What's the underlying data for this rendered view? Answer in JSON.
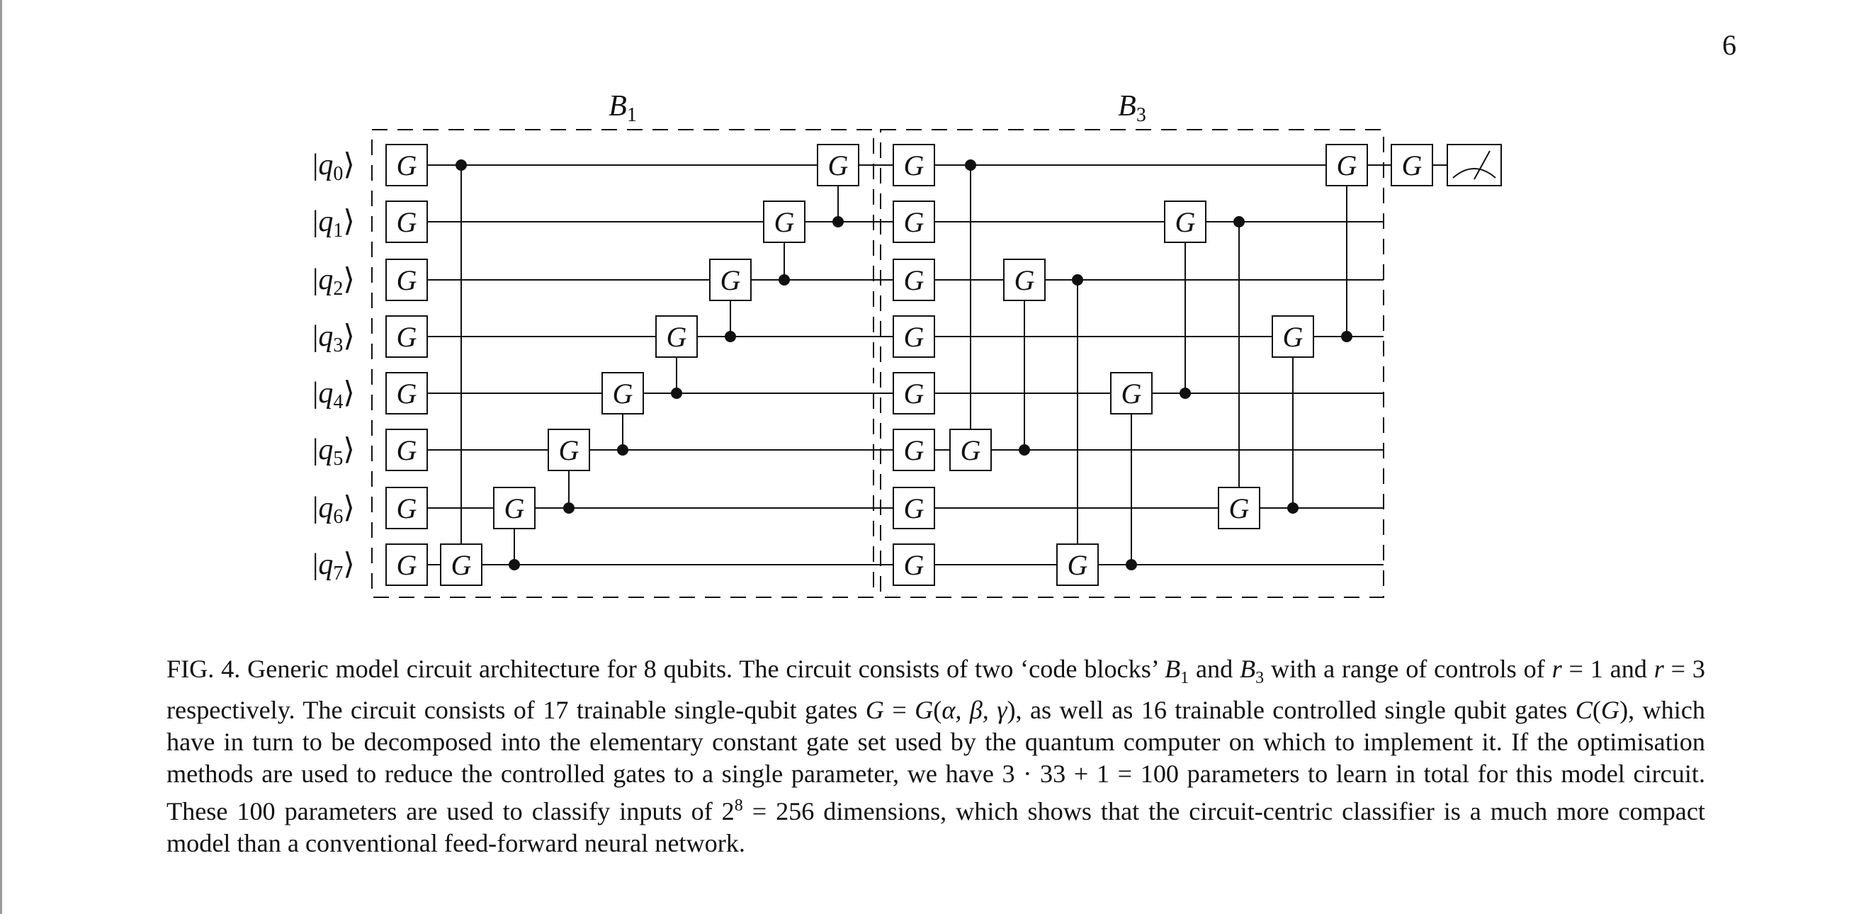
{
  "page_number": "6",
  "figure": {
    "blocks": [
      {
        "label_base": "B",
        "label_sub": "1"
      },
      {
        "label_base": "B",
        "label_sub": "3"
      }
    ],
    "qubits": [
      {
        "base": "q",
        "sub": "0"
      },
      {
        "base": "q",
        "sub": "1"
      },
      {
        "base": "q",
        "sub": "2"
      },
      {
        "base": "q",
        "sub": "3"
      },
      {
        "base": "q",
        "sub": "4"
      },
      {
        "base": "q",
        "sub": "5"
      },
      {
        "base": "q",
        "sub": "6"
      },
      {
        "base": "q",
        "sub": "7"
      }
    ],
    "gate_label": "G",
    "block_B1": {
      "controlled_gates": [
        {
          "control": 0,
          "target": 7
        },
        {
          "control": 7,
          "target": 6
        },
        {
          "control": 6,
          "target": 5
        },
        {
          "control": 5,
          "target": 4
        },
        {
          "control": 4,
          "target": 3
        },
        {
          "control": 3,
          "target": 2
        },
        {
          "control": 2,
          "target": 1
        },
        {
          "control": 1,
          "target": 0
        }
      ]
    },
    "block_B3": {
      "controlled_gates": [
        {
          "control": 0,
          "target": 5
        },
        {
          "control": 5,
          "target": 2
        },
        {
          "control": 2,
          "target": 7
        },
        {
          "control": 7,
          "target": 4
        },
        {
          "control": 4,
          "target": 1
        },
        {
          "control": 1,
          "target": 6
        },
        {
          "control": 6,
          "target": 3
        },
        {
          "control": 3,
          "target": 0
        }
      ]
    },
    "final": {
      "gate_qubit": 0,
      "measurement": "meter-icon"
    }
  },
  "caption": {
    "fig_label": "FIG. 4.",
    "t1": " Generic model circuit architecture for 8 qubits. The circuit consists of two ‘code blocks’ ",
    "b_base": "B",
    "b1_sub": "1",
    "t2": " and ",
    "b3_sub": "3",
    "t3": " with a range of controls of ",
    "r_var": "r",
    "t4": " = 1 and ",
    "t5": " = 3 respectively. The circuit consists of 17 trainable single-qubit gates ",
    "g_var": "G",
    "t6": " = ",
    "g_func": "G",
    "t7": "(",
    "params": "α, β, γ",
    "t8": "), as well as 16 trainable controlled single qubit gates ",
    "c_var": "C",
    "t9": "(",
    "t10": "), which have in turn to be decomposed into the elementary constant gate set used by the quantum computer on which to implement it. If the optimisation methods are used to reduce the controlled gates to a single parameter, we have 3 · 33 + 1 = 100 parameters to learn in total for this model circuit. These 100 parameters are used to classify inputs of 2",
    "sup8": "8",
    "t11": " = 256 dimensions, which shows that the circuit-centric classifier is a much more compact model than a conventional feed-forward neural network."
  }
}
